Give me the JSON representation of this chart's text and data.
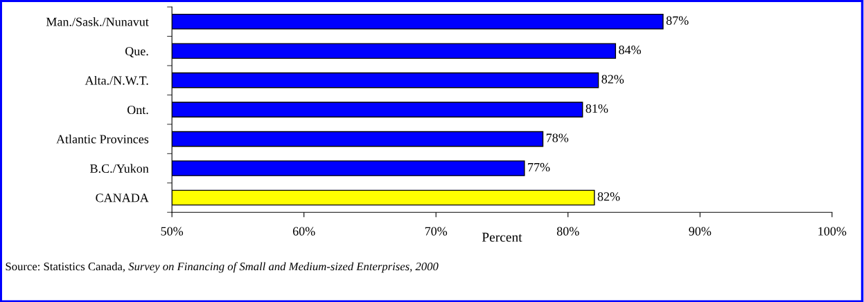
{
  "chart_data": {
    "type": "bar",
    "orientation": "horizontal",
    "xlabel": "Percent",
    "categories": [
      "Man./Sask./Nunavut",
      "Que.",
      "Alta./N.W.T.",
      "Ont.",
      "Atlantic Provinces",
      "B.C./Yukon",
      "CANADA"
    ],
    "values": [
      87.2,
      83.6,
      82.3,
      81.1,
      78.1,
      76.7,
      82.0
    ],
    "value_labels": [
      "87%",
      "84%",
      "82%",
      "81%",
      "78%",
      "77%",
      "82%"
    ],
    "colors": [
      "#0000ff",
      "#0000ff",
      "#0000ff",
      "#0000ff",
      "#0000ff",
      "#0000ff",
      "#ffff00"
    ],
    "xlim": [
      50,
      100
    ],
    "xticks": [
      {
        "value": 50,
        "label": "50%"
      },
      {
        "value": 60,
        "label": "60%"
      },
      {
        "value": 70,
        "label": "70%"
      },
      {
        "value": 80,
        "label": "80%"
      },
      {
        "value": 90,
        "label": "90%"
      },
      {
        "value": 100,
        "label": "100%"
      }
    ],
    "grid": false,
    "legend": false,
    "annotations": [
      "Source: Statistics Canada, ",
      "Survey on Financing of Small and Medium-sized Enterprises, 2000"
    ]
  }
}
